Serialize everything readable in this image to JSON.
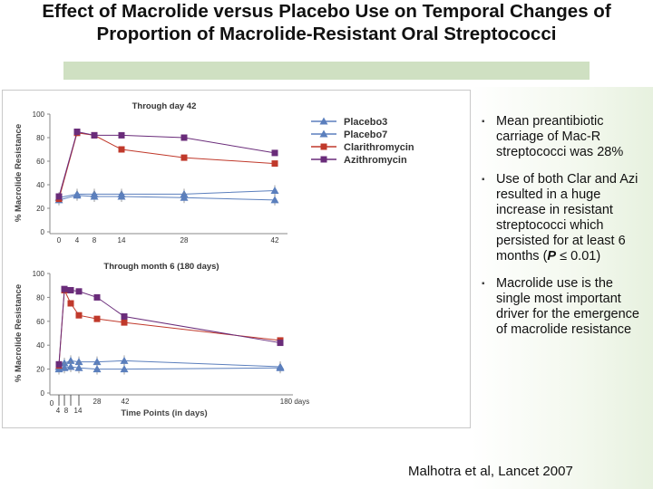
{
  "slide": {
    "title_line1": "Effect of Macrolide versus Placebo Use on Temporal Changes of",
    "title_line2": "Proportion of Macrolide-Resistant Oral Streptococci",
    "citation": "Malhotra et al, Lancet 2007"
  },
  "bullets": [
    {
      "text": "Mean preantibiotic carriage of Mac-R streptococci was 28%"
    },
    {
      "prefix": "Use of both Clar and Azi resulted in a huge increase in resistant streptococci which persisted for at least 6 months (",
      "emph": "P",
      "suffix": " ≤ 0.01)"
    },
    {
      "text": "Macrolide use is the single most important driver for the emergence of macrolide resistance"
    }
  ],
  "colors": {
    "placebo": "#5b7fbd",
    "clarithromycin": "#c0392b",
    "azithromycin": "#6a2c7a",
    "accent_band": "#cfe0c2"
  },
  "chart_data": [
    {
      "type": "line",
      "title": "Through day 42",
      "ylabel": "% Macrolide Resistance",
      "xlabel": "",
      "x": [
        0,
        4,
        8,
        14,
        28,
        42
      ],
      "x_tick_labels": [
        "0",
        "4",
        "8",
        "14",
        "28",
        "42"
      ],
      "y_ticks": [
        0,
        20,
        40,
        60,
        80,
        100
      ],
      "ylim": [
        0,
        100
      ],
      "legend_position": "top-right",
      "series": [
        {
          "name": "Placebo3",
          "key": "placebo",
          "marker": "triangle",
          "values": [
            29,
            32,
            32,
            32,
            32,
            35
          ]
        },
        {
          "name": "Placebo7",
          "key": "placebo",
          "marker": "triangle",
          "values": [
            27,
            31,
            30,
            30,
            29,
            27
          ]
        },
        {
          "name": "Clarithromycin",
          "key": "clarithromycin",
          "marker": "square",
          "values": [
            28,
            84,
            82,
            70,
            63,
            58
          ]
        },
        {
          "name": "Azithromycin",
          "key": "azithromycin",
          "marker": "square",
          "values": [
            30,
            85,
            82,
            82,
            80,
            67
          ]
        }
      ]
    },
    {
      "type": "line",
      "title": "Through month 6 (180 days)",
      "ylabel": "% Macrolide Resistance",
      "xlabel": "Time Points (in days)",
      "x": [
        0,
        4,
        8,
        14,
        28,
        42,
        180
      ],
      "x_tick_labels": [
        "0",
        "4",
        "8",
        "14",
        "28",
        "42",
        "180 days"
      ],
      "y_ticks": [
        0,
        20,
        40,
        60,
        80,
        100
      ],
      "ylim": [
        0,
        100
      ],
      "series": [
        {
          "name": "Placebo3",
          "key": "placebo",
          "marker": "triangle",
          "values": [
            22,
            25,
            27,
            26,
            26,
            27,
            22
          ]
        },
        {
          "name": "Placebo7",
          "key": "placebo",
          "marker": "triangle",
          "values": [
            20,
            21,
            22,
            21,
            20,
            20,
            21
          ]
        },
        {
          "name": "Clarithromycin",
          "key": "clarithromycin",
          "marker": "square",
          "values": [
            23,
            86,
            75,
            65,
            62,
            59,
            44
          ]
        },
        {
          "name": "Azithromycin",
          "key": "azithromycin",
          "marker": "square",
          "values": [
            24,
            87,
            86,
            85,
            80,
            64,
            42
          ]
        }
      ]
    }
  ]
}
